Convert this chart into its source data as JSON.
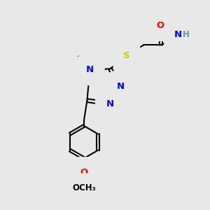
{
  "background_color": "#e8e8e8",
  "atom_colors": {
    "O": "#ff0000",
    "N": "#0000ff",
    "S": "#cccc00",
    "C": "#000000",
    "H": "#5f9ea0"
  },
  "bond_color": "#000000",
  "bond_width": 1.5,
  "figsize": [
    3.0,
    3.0
  ],
  "dpi": 100
}
